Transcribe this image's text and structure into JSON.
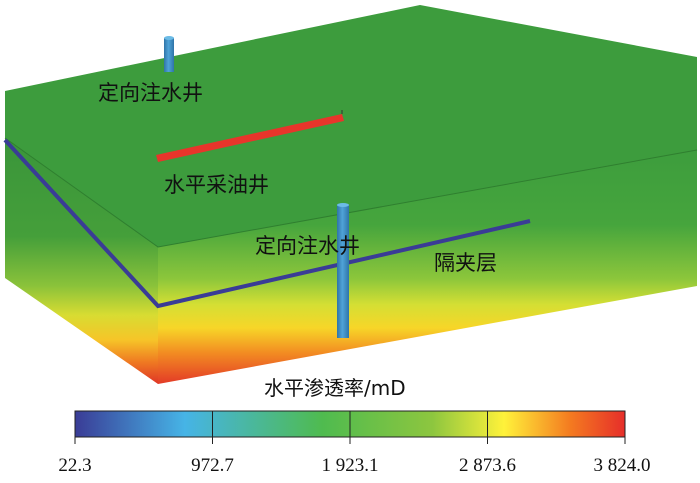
{
  "labels": {
    "injector_top": "定向注水井",
    "producer": "水平采油井",
    "injector_front": "定向注水井",
    "barrier": "隔夹层"
  },
  "colorbar": {
    "title": "水平渗透率/mD",
    "ticks": [
      "22.3",
      "972.7",
      "1 923.1",
      "2 873.6",
      "3 824.0"
    ],
    "stops": [
      "#3a3c96",
      "#46b4e6",
      "#4fbb4f",
      "#8dc63f",
      "#fff23a",
      "#f47b20",
      "#e62e2a"
    ]
  },
  "colors": {
    "top_face": "#3d9c3d",
    "front_face": "#3f9f3f",
    "side_face": "#3a953a",
    "barrier_line": "#3a3c96",
    "producer_well": "#e8352b",
    "injector_well": "#3f90c9"
  }
}
